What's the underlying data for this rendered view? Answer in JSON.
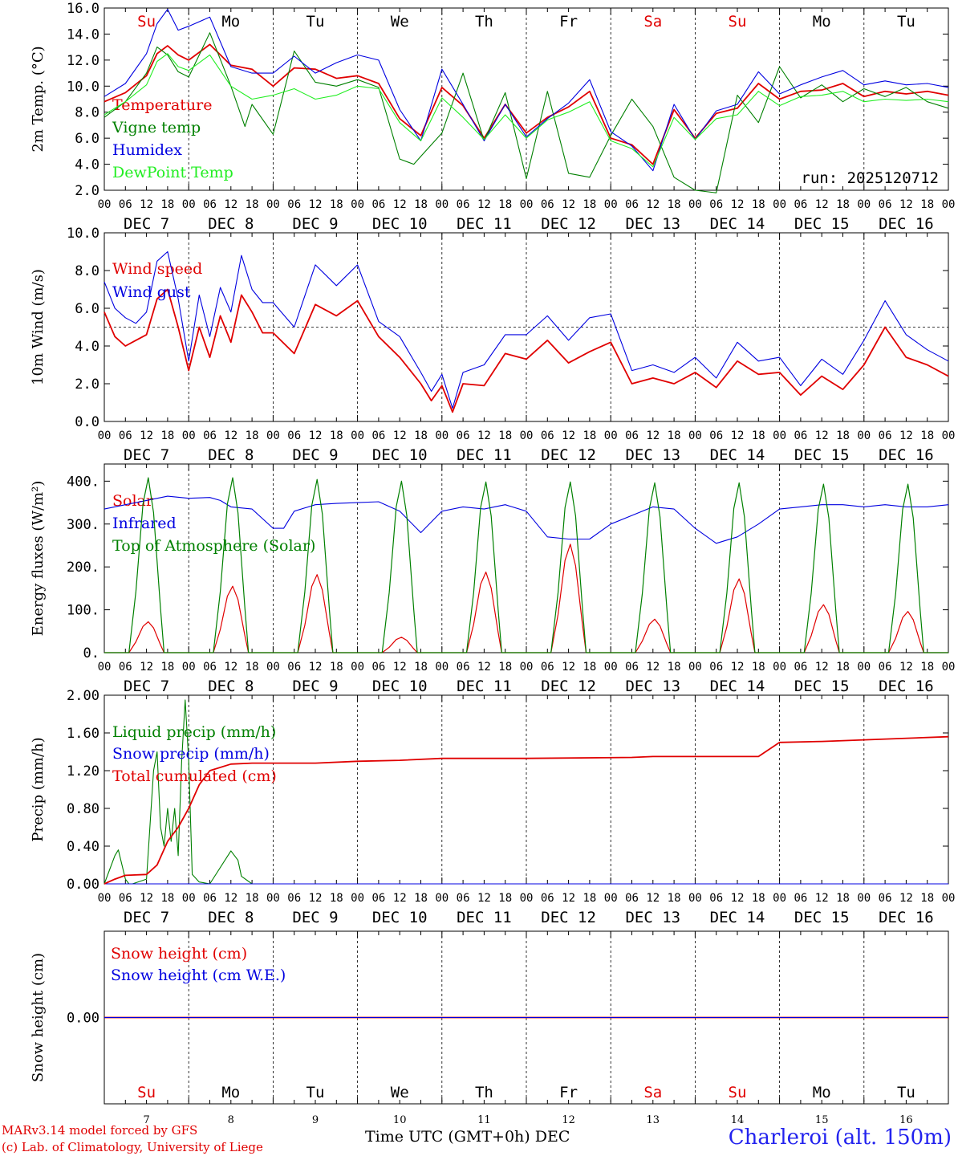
{
  "footer": {
    "model": "MARv3.14 model forced by GFS",
    "credit": "(c) Lab. of Climatology, University of Liege",
    "axis_caption": "Time UTC (GMT+0h) DEC",
    "station": "Charleroi (alt. 150m)"
  },
  "colors": {
    "red": "#e00000",
    "green": "#008000",
    "blue": "#0000e0",
    "lightgreen": "#22ee22",
    "grid": "#000000"
  },
  "chart_data": [
    {
      "id": "temp",
      "type": "line",
      "ylabel": "2m Temp. (°C)",
      "ylim": [
        2.0,
        16.0
      ],
      "yticks": [
        2.0,
        4.0,
        6.0,
        8.0,
        10.0,
        12.0,
        14.0,
        16.0
      ],
      "tick_decimals": 1,
      "run_label": "run: 2025120712",
      "day_names": [
        "Su",
        "Mo",
        "Tu",
        "We",
        "Th",
        "Fr",
        "Sa",
        "Su",
        "Mo",
        "Tu"
      ],
      "weekend": [
        true,
        false,
        false,
        false,
        false,
        false,
        true,
        true,
        false,
        false
      ],
      "date_labels": [
        "DEC  7",
        "DEC  8",
        "DEC  9",
        "DEC 10",
        "DEC 11",
        "DEC 12",
        "DEC 13",
        "DEC 14",
        "DEC 15",
        "DEC 16"
      ],
      "hour_labels": [
        "00",
        "06",
        "12",
        "18"
      ],
      "x_unit": "hours since Dec 7 00 UTC",
      "series": [
        {
          "name": "Temperature",
          "color": "red",
          "x": [
            0,
            6,
            12,
            15,
            18,
            21,
            24,
            30,
            36,
            42,
            48,
            54,
            60,
            66,
            72,
            78,
            84,
            90,
            96,
            102,
            108,
            114,
            120,
            126,
            132,
            138,
            144,
            150,
            156,
            162,
            168,
            174,
            180,
            186,
            192,
            198,
            204,
            210,
            216,
            222,
            228,
            234,
            240
          ],
          "values": [
            8.8,
            9.5,
            10.8,
            12.5,
            13.1,
            12.4,
            12.0,
            13.2,
            11.6,
            11.3,
            10.0,
            11.4,
            11.3,
            10.6,
            10.8,
            10.2,
            7.5,
            6.2,
            9.9,
            8.5,
            6.0,
            8.6,
            6.4,
            7.6,
            8.4,
            9.6,
            6.0,
            5.5,
            4.0,
            8.2,
            6.0,
            7.9,
            8.3,
            10.2,
            9.0,
            9.6,
            9.7,
            10.2,
            9.2,
            9.6,
            9.4,
            9.6,
            9.3
          ]
        },
        {
          "name": "Vigne temp",
          "color": "green",
          "x": [
            0,
            6,
            12,
            15,
            18,
            21,
            24,
            30,
            36,
            40,
            42,
            48,
            54,
            60,
            66,
            72,
            78,
            84,
            88,
            90,
            96,
            102,
            108,
            114,
            120,
            126,
            132,
            138,
            144,
            150,
            156,
            162,
            168,
            174,
            180,
            186,
            192,
            198,
            204,
            210,
            216,
            222,
            228,
            234,
            240
          ],
          "values": [
            7.6,
            8.8,
            11.0,
            13.0,
            12.4,
            11.1,
            10.7,
            14.1,
            10.0,
            6.9,
            8.6,
            6.3,
            12.7,
            10.3,
            10.0,
            10.5,
            9.9,
            4.4,
            4.0,
            4.6,
            6.4,
            11.0,
            5.8,
            9.5,
            2.9,
            9.6,
            3.3,
            3.0,
            6.2,
            9.0,
            6.9,
            3.0,
            2.0,
            1.8,
            9.3,
            7.2,
            11.5,
            9.1,
            10.1,
            8.8,
            9.8,
            9.2,
            9.9,
            8.8,
            8.3
          ]
        },
        {
          "name": "Humidex",
          "color": "blue",
          "x": [
            0,
            6,
            12,
            15,
            18,
            21,
            24,
            30,
            36,
            42,
            48,
            54,
            60,
            66,
            72,
            78,
            84,
            90,
            96,
            102,
            108,
            114,
            120,
            126,
            132,
            138,
            144,
            150,
            156,
            162,
            168,
            174,
            180,
            186,
            192,
            198,
            204,
            210,
            216,
            222,
            228,
            234,
            240
          ],
          "values": [
            9.2,
            10.2,
            12.5,
            14.8,
            15.9,
            14.3,
            14.6,
            15.3,
            11.5,
            11.0,
            11.0,
            12.3,
            11.0,
            11.8,
            12.4,
            12.0,
            8.2,
            5.8,
            11.3,
            8.6,
            5.8,
            8.6,
            6.1,
            7.5,
            8.7,
            10.5,
            6.5,
            5.4,
            3.5,
            8.6,
            5.9,
            8.1,
            8.6,
            11.1,
            9.4,
            10.1,
            10.7,
            11.2,
            10.1,
            10.4,
            10.1,
            10.2,
            9.9
          ]
        },
        {
          "name": "DewPoint Temp",
          "color": "lightgreen",
          "x": [
            0,
            6,
            12,
            15,
            18,
            21,
            24,
            30,
            36,
            42,
            48,
            54,
            60,
            66,
            72,
            78,
            84,
            90,
            96,
            102,
            108,
            114,
            120,
            126,
            132,
            138,
            144,
            150,
            156,
            162,
            168,
            174,
            180,
            186,
            192,
            198,
            204,
            210,
            216,
            222,
            228,
            234,
            240
          ],
          "values": [
            7.8,
            8.8,
            10.1,
            11.9,
            12.5,
            11.5,
            11.2,
            12.4,
            10.0,
            9.0,
            9.3,
            9.8,
            9.0,
            9.3,
            10.0,
            9.8,
            7.2,
            5.8,
            9.1,
            7.6,
            5.9,
            7.8,
            6.0,
            7.4,
            8.0,
            8.8,
            5.8,
            5.2,
            3.8,
            7.6,
            5.9,
            7.5,
            7.8,
            9.6,
            8.5,
            9.2,
            9.3,
            9.6,
            8.8,
            9.0,
            8.9,
            9.0,
            8.8
          ]
        }
      ]
    },
    {
      "id": "wind",
      "type": "line",
      "ylabel": "10m Wind (m/s)",
      "ylim": [
        0.0,
        10.0
      ],
      "yticks": [
        0.0,
        2.0,
        4.0,
        6.0,
        8.0,
        10.0
      ],
      "tick_decimals": 1,
      "ref_line": 5.0,
      "date_labels": [
        "DEC  7",
        "DEC  8",
        "DEC  9",
        "DEC 10",
        "DEC 11",
        "DEC 12",
        "DEC 13",
        "DEC 14",
        "DEC 15",
        "DEC 16"
      ],
      "hour_labels": [
        "00",
        "06",
        "12",
        "18"
      ],
      "series": [
        {
          "name": "Wind speed",
          "color": "red",
          "x": [
            0,
            3,
            6,
            9,
            12,
            15,
            18,
            21,
            24,
            27,
            30,
            33,
            36,
            39,
            42,
            45,
            48,
            54,
            60,
            66,
            72,
            78,
            84,
            90,
            93,
            96,
            99,
            102,
            108,
            114,
            120,
            126,
            132,
            138,
            144,
            150,
            156,
            162,
            168,
            174,
            180,
            186,
            192,
            198,
            204,
            210,
            216,
            222,
            228,
            234,
            240
          ],
          "values": [
            5.8,
            4.5,
            4.0,
            4.3,
            4.6,
            6.5,
            7.0,
            5.0,
            2.7,
            5.0,
            3.4,
            5.6,
            4.2,
            6.7,
            5.8,
            4.7,
            4.7,
            3.6,
            6.2,
            5.6,
            6.4,
            4.5,
            3.4,
            2.0,
            1.1,
            1.9,
            0.5,
            2.0,
            1.9,
            3.6,
            3.3,
            4.3,
            3.1,
            3.7,
            4.2,
            2.0,
            2.3,
            2.0,
            2.6,
            1.8,
            3.2,
            2.5,
            2.6,
            1.4,
            2.4,
            1.7,
            3.0,
            5.0,
            3.4,
            3.0,
            2.4
          ]
        },
        {
          "name": "Wind gust",
          "color": "blue",
          "x": [
            0,
            3,
            6,
            9,
            12,
            15,
            18,
            21,
            24,
            27,
            30,
            33,
            36,
            39,
            42,
            45,
            48,
            54,
            60,
            66,
            72,
            78,
            84,
            90,
            93,
            96,
            99,
            102,
            108,
            114,
            120,
            126,
            132,
            138,
            144,
            150,
            156,
            162,
            168,
            174,
            180,
            186,
            192,
            198,
            204,
            210,
            216,
            222,
            228,
            234,
            240
          ],
          "values": [
            7.4,
            6.0,
            5.5,
            5.2,
            5.8,
            8.5,
            9.0,
            6.5,
            3.2,
            6.7,
            4.5,
            7.1,
            5.8,
            8.8,
            7.0,
            6.3,
            6.3,
            5.0,
            8.3,
            7.2,
            8.3,
            5.3,
            4.5,
            2.6,
            1.6,
            2.5,
            0.7,
            2.6,
            3.0,
            4.6,
            4.6,
            5.6,
            4.3,
            5.5,
            5.7,
            2.7,
            3.0,
            2.6,
            3.4,
            2.3,
            4.2,
            3.2,
            3.4,
            1.9,
            3.3,
            2.5,
            4.3,
            6.4,
            4.6,
            3.8,
            3.2
          ]
        }
      ]
    },
    {
      "id": "flux",
      "type": "line",
      "ylabel": "Energy fluxes (W/m²)",
      "ylim": [
        0,
        440
      ],
      "yticks": [
        0,
        100,
        200,
        300,
        400
      ],
      "tick_decimals": 0,
      "tick_suffix": ".",
      "date_labels": [
        "DEC  7",
        "DEC  8",
        "DEC  9",
        "DEC 10",
        "DEC 11",
        "DEC 12",
        "DEC 13",
        "DEC 14",
        "DEC 15",
        "DEC 16"
      ],
      "hour_labels": [
        "00",
        "06",
        "12",
        "18"
      ],
      "series": [
        {
          "name": "Solar",
          "color": "red",
          "peaks": [
            72,
            155,
            182,
            36,
            188,
            253,
            78,
            172,
            112,
            96
          ]
        },
        {
          "name": "Infrared",
          "color": "blue",
          "x": [
            0,
            6,
            12,
            18,
            24,
            30,
            33,
            36,
            42,
            48,
            51,
            54,
            60,
            66,
            72,
            78,
            84,
            90,
            96,
            102,
            108,
            114,
            120,
            126,
            132,
            138,
            144,
            150,
            156,
            162,
            168,
            174,
            180,
            186,
            192,
            198,
            204,
            210,
            216,
            222,
            228,
            234,
            240
          ],
          "values": [
            335,
            345,
            355,
            365,
            360,
            362,
            355,
            340,
            335,
            290,
            290,
            330,
            345,
            348,
            350,
            352,
            330,
            280,
            330,
            340,
            335,
            345,
            330,
            270,
            265,
            265,
            300,
            320,
            340,
            335,
            290,
            255,
            270,
            300,
            335,
            340,
            345,
            345,
            340,
            345,
            340,
            340,
            345
          ]
        },
        {
          "name": "Top of Atmosphere (Solar)",
          "color": "green",
          "peaks": [
            408,
            408,
            404,
            400,
            398,
            398,
            396,
            396,
            393,
            393
          ]
        }
      ]
    },
    {
      "id": "precip",
      "type": "line",
      "ylabel": "Precip (mm/h)",
      "ylim": [
        0.0,
        2.0
      ],
      "yticks": [
        0.0,
        0.4,
        0.8,
        1.2,
        1.6,
        2.0
      ],
      "tick_decimals": 2,
      "date_labels": [
        "DEC  7",
        "DEC  8",
        "DEC  9",
        "DEC 10",
        "DEC 11",
        "DEC 12",
        "DEC 13",
        "DEC 14",
        "DEC 15",
        "DEC 16"
      ],
      "hour_labels": [
        "00",
        "06",
        "12",
        "18"
      ],
      "series": [
        {
          "name": "Liquid precip (mm/h)",
          "color": "green",
          "x": [
            0,
            3,
            4,
            6,
            7,
            8,
            12,
            14,
            15,
            16,
            17,
            18,
            19,
            20,
            21,
            22,
            23,
            24,
            25,
            27,
            30,
            36,
            38,
            39,
            42,
            45,
            48,
            240
          ],
          "values": [
            0,
            0.3,
            0.36,
            0.05,
            0,
            0,
            0.05,
            1.2,
            1.4,
            0.6,
            0.4,
            0.8,
            0.45,
            0.8,
            0.3,
            1.3,
            1.95,
            1.3,
            0.1,
            0.02,
            0,
            0.35,
            0.25,
            0.08,
            0,
            0,
            0,
            0
          ]
        },
        {
          "name": "Snow precip (mm/h)",
          "color": "blue",
          "x": [
            0,
            240
          ],
          "values": [
            0,
            0
          ]
        },
        {
          "name": "Total cumulated (cm)",
          "color": "red",
          "x": [
            0,
            3,
            6,
            12,
            15,
            18,
            21,
            24,
            27,
            30,
            36,
            42,
            48,
            60,
            72,
            84,
            96,
            120,
            150,
            156,
            186,
            192,
            204,
            240
          ],
          "values": [
            0,
            0.05,
            0.09,
            0.1,
            0.2,
            0.45,
            0.6,
            0.8,
            1.05,
            1.2,
            1.27,
            1.28,
            1.28,
            1.28,
            1.3,
            1.31,
            1.33,
            1.33,
            1.34,
            1.35,
            1.35,
            1.5,
            1.51,
            1.56
          ]
        }
      ]
    },
    {
      "id": "snow",
      "type": "line",
      "ylabel": "Snow height (cm)",
      "ylim": [
        -1,
        1
      ],
      "yticks": [
        0.0
      ],
      "tick_decimals": 2,
      "day_names": [
        "Su",
        "Mo",
        "Tu",
        "We",
        "Th",
        "Fr",
        "Sa",
        "Su",
        "Mo",
        "Tu"
      ],
      "weekend": [
        true,
        false,
        false,
        false,
        false,
        false,
        true,
        true,
        false,
        false
      ],
      "day_numbers": [
        "7",
        "8",
        "9",
        "10",
        "11",
        "12",
        "13",
        "14",
        "15",
        "16"
      ],
      "series": [
        {
          "name": "Snow height (cm)",
          "color": "red",
          "x": [
            0,
            240
          ],
          "values": [
            0,
            0
          ]
        },
        {
          "name": "Snow height (cm W.E.)",
          "color": "blue",
          "x": [
            0,
            240
          ],
          "values": [
            0,
            0
          ]
        }
      ]
    }
  ]
}
